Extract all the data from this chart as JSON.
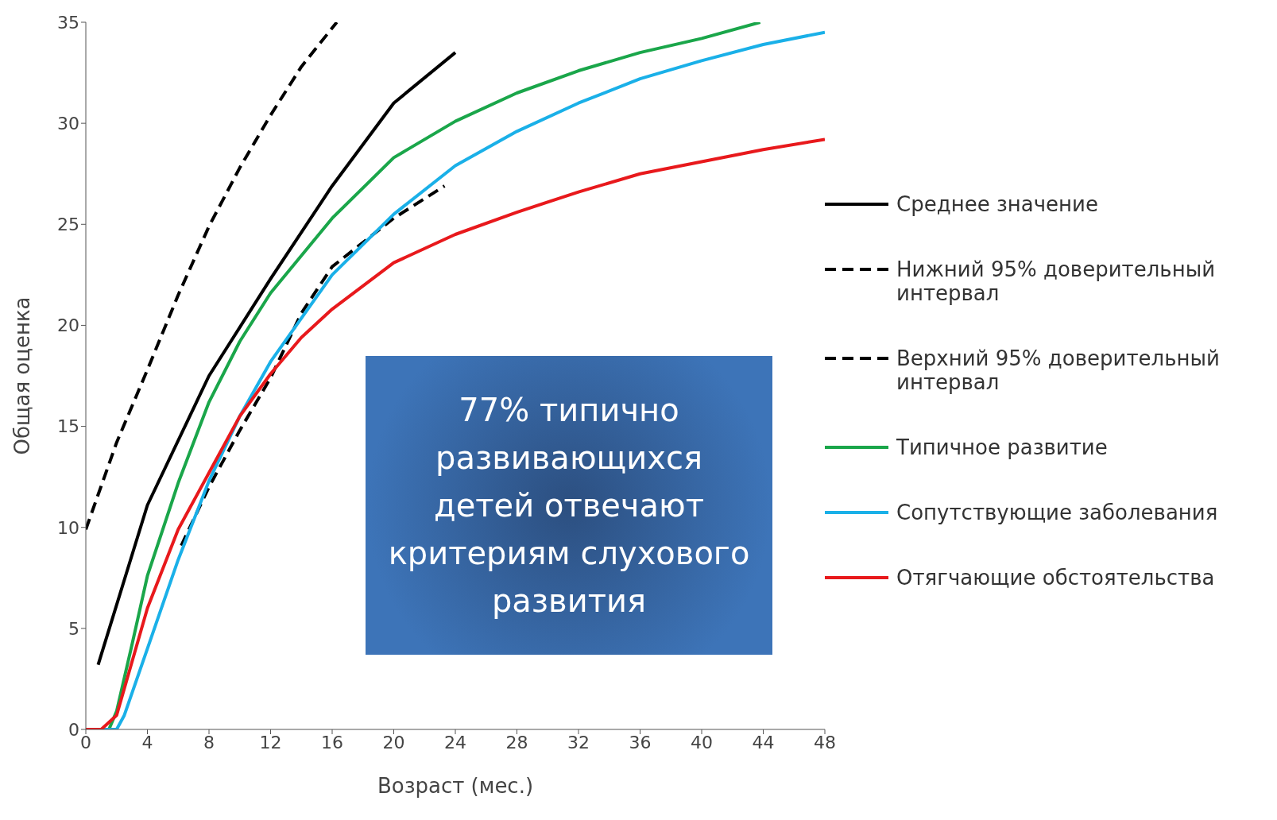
{
  "chart_data": {
    "type": "line",
    "xlabel": "Возраст (мес.)",
    "ylabel": "Общая оценка",
    "xlim": [
      0,
      48
    ],
    "xticks": [
      0,
      4,
      8,
      12,
      16,
      20,
      24,
      28,
      32,
      36,
      40,
      44,
      48
    ],
    "ylim": [
      0,
      35
    ],
    "yticks": [
      0,
      5,
      10,
      15,
      20,
      25,
      30,
      35
    ],
    "legend": "right",
    "marker": "none",
    "annotations": [
      "77% типично развивающихся детей отвечают критериям слухового развития"
    ],
    "series": [
      {
        "name": "Среднее значение",
        "color": "#000000",
        "line_style": "solid",
        "x": [
          0.8,
          4,
          8,
          12,
          16,
          20,
          24
        ],
        "values": [
          3.2,
          11.1,
          17.5,
          22.3,
          26.9,
          31.0,
          33.5
        ]
      },
      {
        "name": "Нижний 95% доверительный интервал",
        "color": "#000000",
        "line_style": "dashed",
        "x": [
          6.2,
          8,
          10,
          12,
          14,
          16,
          20,
          23.3
        ],
        "values": [
          9.1,
          12,
          14.8,
          17.4,
          20.6,
          22.9,
          25.3,
          26.9
        ]
      },
      {
        "name": "Верхний 95% доверительный интервал",
        "color": "#000000",
        "line_style": "dashed",
        "x": [
          0,
          2,
          4,
          6,
          8,
          10,
          12,
          14,
          16.3
        ],
        "values": [
          9.9,
          14.2,
          17.8,
          21.5,
          24.9,
          27.8,
          30.4,
          32.8,
          35
        ]
      },
      {
        "name": "Типичное развитие",
        "color": "#1aa64a",
        "line_style": "solid",
        "x": [
          0,
          1.5,
          2,
          3,
          4,
          6,
          8,
          10,
          12,
          16,
          20,
          24,
          28,
          32,
          36,
          40,
          43.8
        ],
        "values": [
          0,
          0,
          0.9,
          4.2,
          7.6,
          12.2,
          16.2,
          19.2,
          21.6,
          25.3,
          28.3,
          30.1,
          31.5,
          32.6,
          33.5,
          34.2,
          35
        ]
      },
      {
        "name": "Сопутствующие заболевания",
        "color": "#1ab0e8",
        "line_style": "solid",
        "x": [
          0,
          2,
          2.5,
          4,
          6,
          8,
          10,
          12,
          16,
          20,
          24,
          28,
          32,
          36,
          40,
          44,
          48
        ],
        "values": [
          0,
          0,
          0.7,
          4,
          8.4,
          12.3,
          15.5,
          18.2,
          22.5,
          25.5,
          27.9,
          29.6,
          31.0,
          32.2,
          33.1,
          33.9,
          34.5
        ]
      },
      {
        "name": "Отягчающие обстоятельства",
        "color": "#e8191c",
        "line_style": "solid",
        "x": [
          0,
          1,
          2,
          4,
          6,
          8,
          10,
          12,
          14,
          16,
          20,
          24,
          28,
          32,
          36,
          40,
          44,
          48
        ],
        "values": [
          0,
          0,
          0.7,
          6,
          9.9,
          12.7,
          15.5,
          17.6,
          19.4,
          20.8,
          23.1,
          24.5,
          25.6,
          26.6,
          27.5,
          28.1,
          28.7,
          29.2
        ]
      }
    ]
  }
}
